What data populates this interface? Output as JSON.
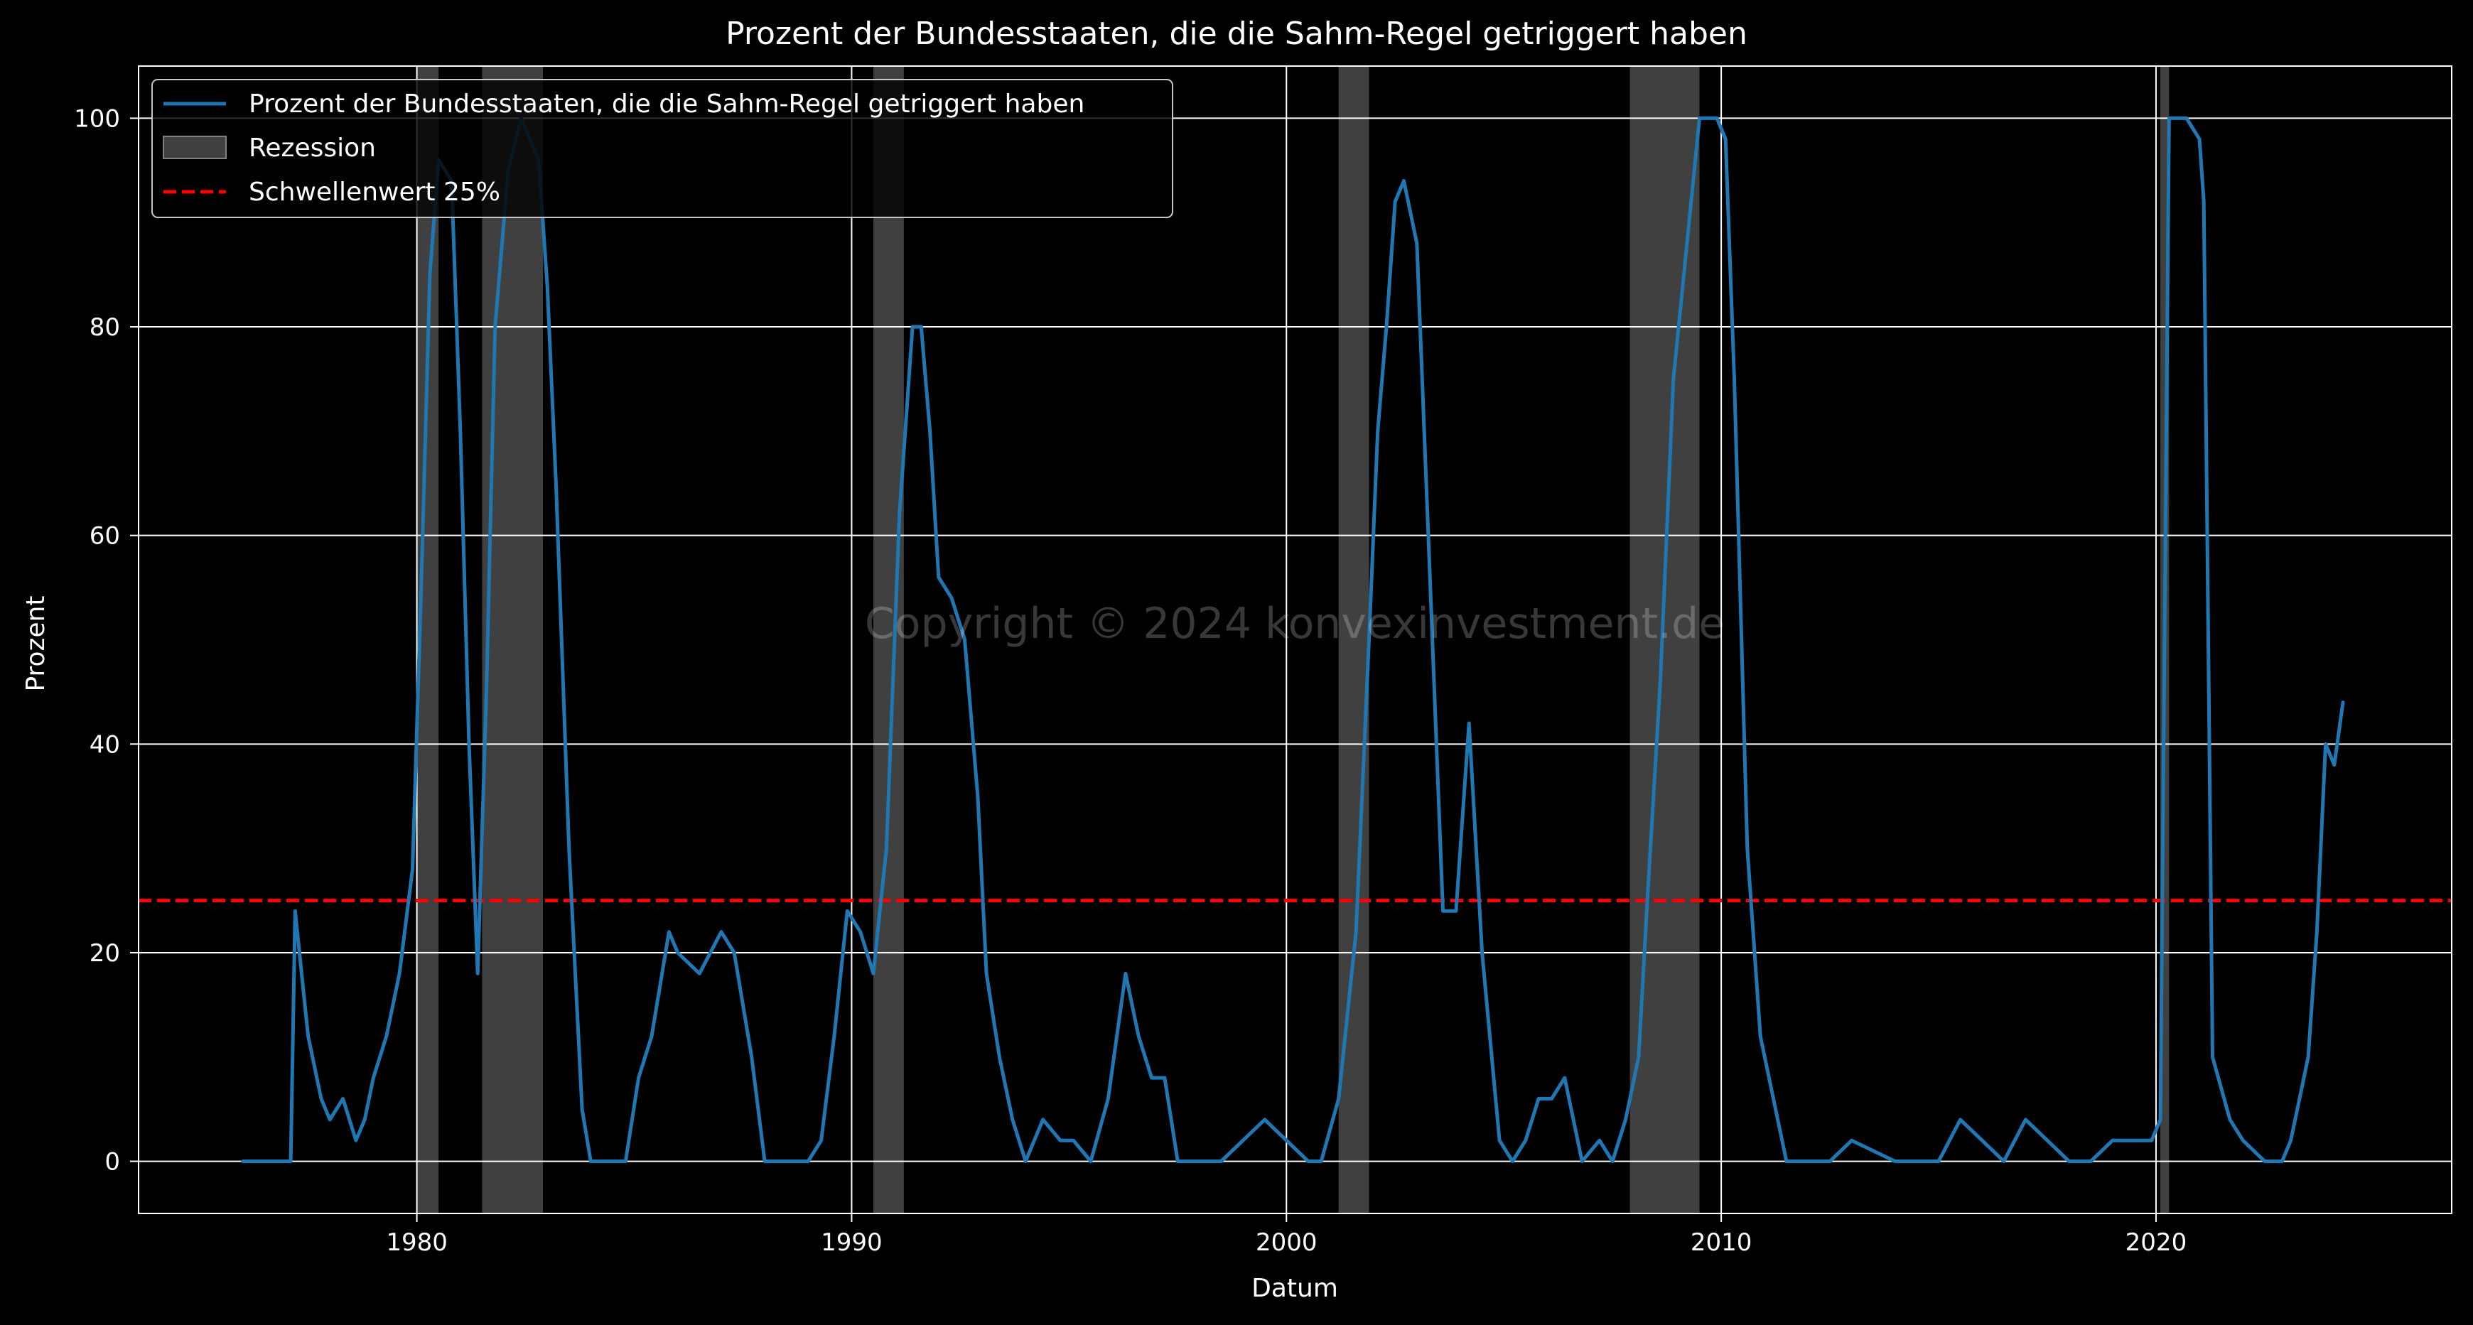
{
  "chart_data": {
    "type": "line",
    "title": "Prozent der Bundesstaaten, die die Sahm-Regel getriggert haben",
    "xlabel": "Datum",
    "ylabel": "Prozent",
    "xlim": [
      1973.6,
      2026.8
    ],
    "ylim": [
      -5,
      105
    ],
    "grid": true,
    "legend_position": "top-left",
    "watermark": "Copyright © 2024 konvexinvestment.de",
    "x_ticks": [
      1980,
      1990,
      2000,
      2010,
      2020
    ],
    "x_tick_labels": [
      "1980",
      "1990",
      "2000",
      "2010",
      "2020"
    ],
    "y_ticks": [
      0,
      20,
      40,
      60,
      80,
      100
    ],
    "y_tick_labels": [
      "0",
      "20",
      "40",
      "60",
      "80",
      "100"
    ],
    "colors": {
      "line": "#1f77b4",
      "threshold": "#ff0000",
      "recession": "#808080",
      "background": "#000000",
      "grid": "#ffffff"
    },
    "series": [
      {
        "name": "Prozent der Bundesstaaten, die die Sahm-Regel getriggert haben",
        "x": [
          1976.0,
          1977.1,
          1977.2,
          1977.3,
          1977.5,
          1977.8,
          1978.0,
          1978.3,
          1978.6,
          1978.8,
          1979.0,
          1979.3,
          1979.6,
          1979.9,
          1980.1,
          1980.3,
          1980.5,
          1980.8,
          1981.0,
          1981.2,
          1981.4,
          1981.6,
          1981.8,
          1982.1,
          1982.4,
          1982.8,
          1983.0,
          1983.2,
          1983.5,
          1983.8,
          1984.0,
          1984.8,
          1985.1,
          1985.4,
          1985.8,
          1986.0,
          1986.5,
          1987.0,
          1987.3,
          1987.7,
          1988.0,
          1989.0,
          1989.3,
          1989.6,
          1989.9,
          1990.2,
          1990.5,
          1990.8,
          1991.1,
          1991.4,
          1991.6,
          1991.8,
          1992.0,
          1992.3,
          1992.6,
          1992.9,
          1993.1,
          1993.4,
          1993.7,
          1994.0,
          1994.4,
          1994.8,
          1995.1,
          1995.5,
          1995.9,
          1996.1,
          1996.3,
          1996.6,
          1996.9,
          1997.2,
          1997.5,
          1998.0,
          1998.5,
          1999.0,
          1999.5,
          2000.0,
          2000.5,
          2000.8,
          2001.2,
          2001.6,
          2001.9,
          2002.1,
          2002.3,
          2002.5,
          2002.7,
          2003.0,
          2003.3,
          2003.6,
          2003.9,
          2004.2,
          2004.5,
          2004.9,
          2005.2,
          2005.5,
          2005.8,
          2006.1,
          2006.4,
          2006.8,
          2007.2,
          2007.5,
          2007.8,
          2008.1,
          2008.3,
          2008.6,
          2008.9,
          2009.5,
          2009.9,
          2010.1,
          2010.3,
          2010.6,
          2010.9,
          2011.2,
          2011.5,
          2012.5,
          2013.0,
          2014.0,
          2014.5,
          2015.0,
          2015.5,
          2016.0,
          2016.5,
          2017.0,
          2017.5,
          2018.0,
          2018.5,
          2019.0,
          2019.5,
          2019.9,
          2020.1,
          2020.3,
          2020.7,
          2021.0,
          2021.1,
          2021.3,
          2021.7,
          2022.0,
          2022.5,
          2022.9,
          2023.1,
          2023.3,
          2023.5,
          2023.7,
          2023.9,
          2024.1,
          2024.3
        ],
        "y": [
          0,
          0,
          24,
          20,
          12,
          6,
          4,
          6,
          2,
          4,
          8,
          12,
          18,
          28,
          55,
          85,
          96,
          94,
          70,
          40,
          18,
          45,
          80,
          95,
          100,
          96,
          84,
          65,
          30,
          5,
          0,
          0,
          8,
          12,
          22,
          20,
          18,
          22,
          20,
          10,
          0,
          0,
          2,
          12,
          24,
          22,
          18,
          30,
          62,
          80,
          80,
          70,
          56,
          54,
          50,
          35,
          18,
          10,
          4,
          0,
          4,
          2,
          2,
          0,
          6,
          12,
          18,
          12,
          8,
          8,
          0,
          0,
          0,
          2,
          4,
          2,
          0,
          0,
          6,
          22,
          50,
          70,
          80,
          92,
          94,
          88,
          56,
          24,
          24,
          42,
          20,
          2,
          0,
          2,
          6,
          6,
          8,
          0,
          2,
          0,
          4,
          10,
          25,
          46,
          75,
          100,
          100,
          98,
          75,
          30,
          12,
          6,
          0,
          0,
          2,
          0,
          0,
          0,
          4,
          2,
          0,
          4,
          2,
          0,
          0,
          2,
          2,
          2,
          4,
          100,
          100,
          98,
          92,
          10,
          4,
          2,
          0,
          0,
          2,
          6,
          10,
          22,
          40,
          38,
          44
        ]
      }
    ],
    "recessions": [
      [
        1980.0,
        1980.5
      ],
      [
        1981.5,
        1982.9
      ],
      [
        1990.5,
        1991.2
      ],
      [
        2001.2,
        2001.9
      ],
      [
        2007.9,
        2009.5
      ],
      [
        2020.1,
        2020.3
      ]
    ],
    "threshold": {
      "name": "Schwellenwert 25%",
      "value": 25
    },
    "legend": [
      "Prozent der Bundesstaaten, die die Sahm-Regel getriggert haben",
      "Rezession",
      "Schwellenwert 25%"
    ]
  }
}
